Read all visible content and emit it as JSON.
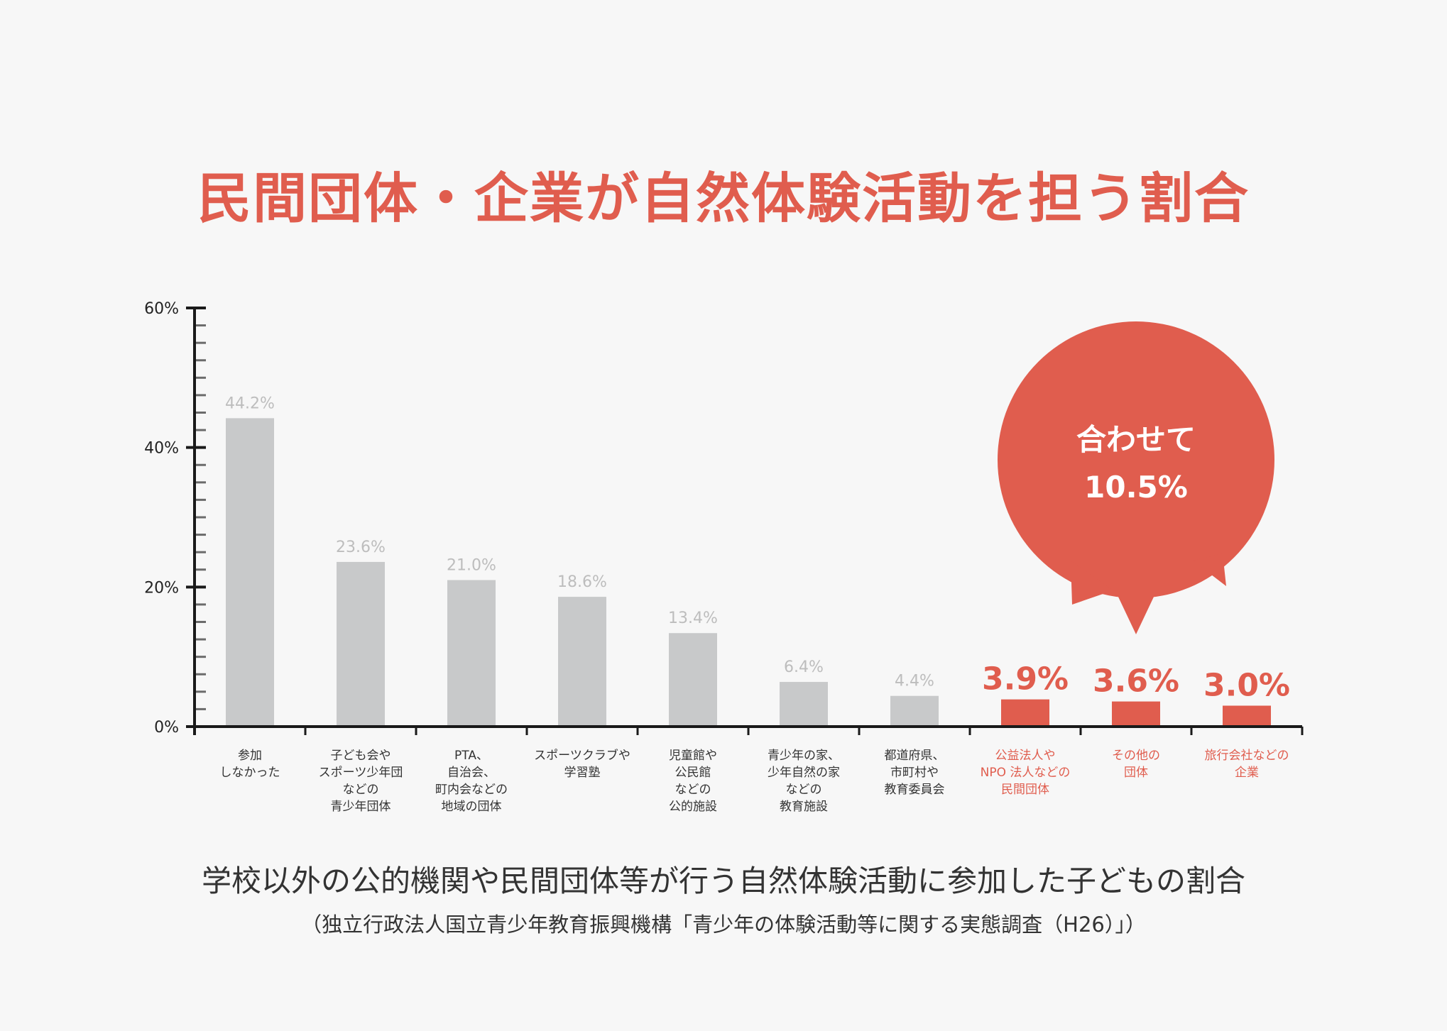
{
  "colors": {
    "accent": "#e05d4e",
    "bar_gray": "#c8c9ca",
    "value_gray": "#bdbdbd",
    "axis": "#1a1a1a",
    "background": "#f7f7f7"
  },
  "chart_data": {
    "type": "bar",
    "title": "民間団体・企業が自然体験活動を担う割合",
    "caption": "学校以外の公的機関や民間団体等が行う自然体験活動に参加した子どもの割合",
    "source": "（独立行政法人国立青少年教育振興機構「青少年の体験活動等に関する実態調査（H26）」）",
    "ylim": [
      0,
      60
    ],
    "yticks": [
      "0%",
      "20%",
      "40%",
      "60%"
    ],
    "categories": [
      [
        "参加",
        "しなかった"
      ],
      [
        "子ども会や",
        "スポーツ少年団",
        "などの",
        "青少年団体"
      ],
      [
        "PTA、",
        "自治会、",
        "町内会などの",
        "地域の団体"
      ],
      [
        "スポーツクラブや",
        "学習塾"
      ],
      [
        "児童館や",
        "公民館",
        "などの",
        "公的施設"
      ],
      [
        "青少年の家、",
        "少年自然の家",
        "などの",
        "教育施設"
      ],
      [
        "都道府県、",
        "市町村や",
        "教育委員会"
      ],
      [
        "公益法人や",
        "NPO 法人などの",
        "民間団体"
      ],
      [
        "その他の",
        "団体"
      ],
      [
        "旅行会社などの",
        "企業"
      ]
    ],
    "values": [
      44.2,
      23.6,
      21.0,
      18.6,
      13.4,
      6.4,
      4.4,
      3.9,
      3.6,
      3.0
    ],
    "value_labels": [
      "44.2%",
      "23.6%",
      "21.0%",
      "18.6%",
      "13.4%",
      "6.4%",
      "4.4%",
      "3.9%",
      "3.6%",
      "3.0%"
    ],
    "highlighted": [
      false,
      false,
      false,
      false,
      false,
      false,
      false,
      true,
      true,
      true
    ],
    "callout": {
      "line1": "合わせて",
      "line2": "10.5%"
    },
    "grid": false,
    "legend": "none"
  }
}
